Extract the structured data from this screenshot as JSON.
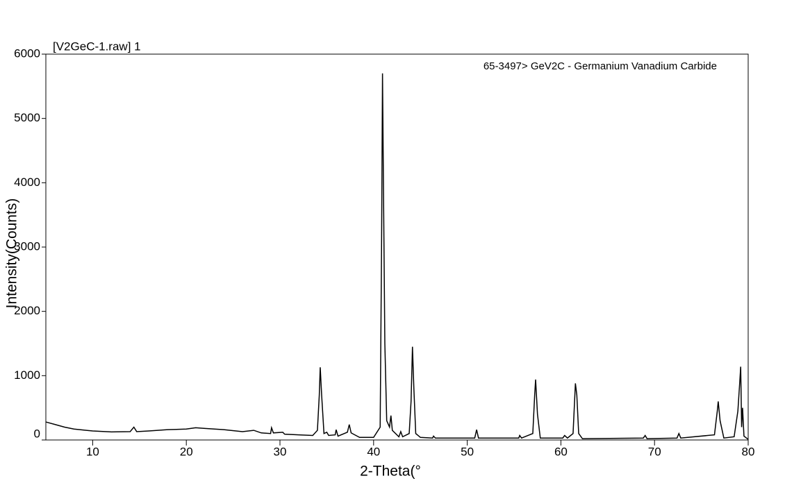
{
  "chart_data": {
    "type": "line",
    "title": "[V2GeC-1.raw] 1",
    "annotation": "65-3497> GeV2C - Germanium Vanadium Carbide",
    "x_label": "2-Theta(°",
    "y_label": "Intensity(Counts)",
    "color": "#000000",
    "xlim": [
      5,
      80
    ],
    "xticks": [
      10,
      20,
      30,
      40,
      50,
      60,
      70,
      80
    ],
    "ylim": [
      0,
      6000
    ],
    "yticks": [
      0,
      1000,
      2000,
      3000,
      4000,
      5000,
      6000
    ],
    "x": [
      5,
      6,
      7,
      8,
      10,
      12,
      14,
      14.4,
      14.7,
      16,
      18,
      20,
      21,
      22,
      24,
      26,
      27.2,
      28,
      29,
      29.1,
      29.3,
      30.3,
      30.5,
      32,
      33.5,
      34.0,
      34.2,
      34.3,
      34.45,
      34.7,
      35.0,
      35.2,
      35.9,
      36.0,
      36.2,
      37.2,
      37.4,
      37.6,
      38.5,
      40.0,
      40.7,
      40.85,
      40.95,
      41.05,
      41.2,
      41.4,
      41.7,
      41.85,
      42.0,
      42.7,
      42.9,
      43.1,
      43.8,
      44.0,
      44.15,
      44.3,
      44.5,
      45,
      46.3,
      46.4,
      46.6,
      50.8,
      51.0,
      51.2,
      55.5,
      55.6,
      55.8,
      57.0,
      57.2,
      57.3,
      57.5,
      57.8,
      60.2,
      60.4,
      60.7,
      61.3,
      61.55,
      61.7,
      61.9,
      62.3,
      68.8,
      69.0,
      69.2,
      72.4,
      72.6,
      72.8,
      76.4,
      76.7,
      76.8,
      77.0,
      77.4,
      78.5,
      78.9,
      79.1,
      79.2,
      79.3,
      79.4,
      79.55,
      80
    ],
    "values": [
      280,
      240,
      200,
      170,
      140,
      125,
      130,
      200,
      130,
      140,
      160,
      170,
      190,
      180,
      160,
      130,
      150,
      110,
      100,
      190,
      110,
      120,
      90,
      80,
      70,
      150,
      700,
      1130,
      700,
      100,
      120,
      70,
      80,
      160,
      60,
      120,
      240,
      110,
      40,
      40,
      200,
      3000,
      5700,
      4000,
      1500,
      300,
      200,
      380,
      150,
      50,
      130,
      50,
      100,
      600,
      1450,
      800,
      100,
      40,
      30,
      60,
      30,
      30,
      160,
      30,
      30,
      70,
      30,
      100,
      700,
      940,
      400,
      30,
      30,
      70,
      30,
      100,
      880,
      700,
      100,
      20,
      30,
      70,
      20,
      30,
      100,
      30,
      80,
      450,
      600,
      300,
      30,
      50,
      450,
      900,
      1140,
      200,
      500,
      60,
      10
    ]
  }
}
